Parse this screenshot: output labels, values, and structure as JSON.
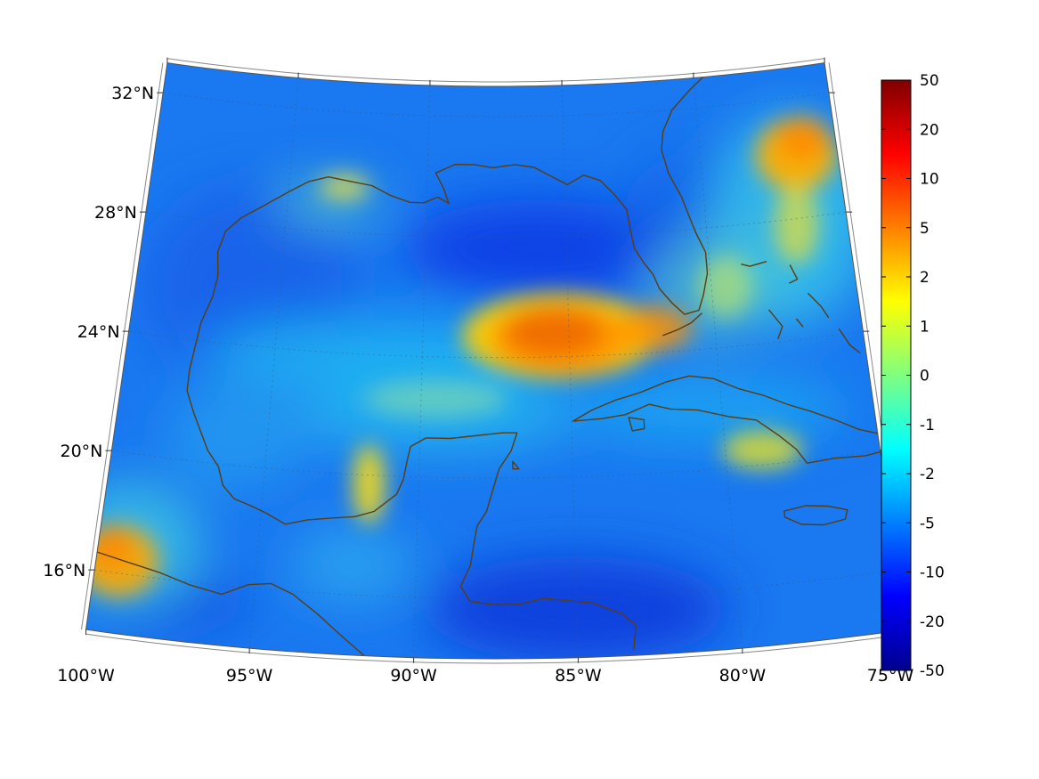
{
  "map": {
    "projection": "conic",
    "longitude_range": [
      -100,
      -75
    ],
    "latitude_range": [
      14,
      33
    ],
    "latitude_labels": [
      {
        "lat": 32,
        "text": "32°N"
      },
      {
        "lat": 28,
        "text": "28°N"
      },
      {
        "lat": 24,
        "text": "24°N"
      },
      {
        "lat": 20,
        "text": "20°N"
      },
      {
        "lat": 16,
        "text": "16°N"
      }
    ],
    "longitude_labels": [
      {
        "lon": -100,
        "text": "100°W"
      },
      {
        "lon": -95,
        "text": "95°W"
      },
      {
        "lon": -90,
        "text": "90°W"
      },
      {
        "lon": -85,
        "text": "85°W"
      },
      {
        "lon": -80,
        "text": "80°W"
      },
      {
        "lon": -75,
        "text": "75°W"
      }
    ],
    "coastline_color": "#5a3c10",
    "field_features": [
      {
        "lon": -85.3,
        "lat": 24.6,
        "value": 5,
        "feature": "warm anomaly north of Cuba"
      },
      {
        "lon": -76.5,
        "lat": 30.0,
        "value": 4,
        "feature": "warm anomaly off Carolinas"
      },
      {
        "lon": -99.3,
        "lat": 16.3,
        "value": 4,
        "feature": "warm anomaly over southern Mexico"
      },
      {
        "lon": -91.5,
        "lat": 19.7,
        "value": 1.5,
        "feature": "warm anomaly over Campeche"
      },
      {
        "lon": -86.5,
        "lat": 27.5,
        "value": -10,
        "feature": "cold anomaly northeastern Gulf"
      },
      {
        "lon": -85.0,
        "lat": 15.5,
        "value": -12,
        "feature": "cold anomaly Gulf of Honduras"
      }
    ]
  },
  "colorbar": {
    "tick_labels": [
      "50",
      "20",
      "10",
      "5",
      "2",
      "1",
      "0",
      "-1",
      "-2",
      "-5",
      "-10",
      "-20",
      "-50"
    ],
    "colors": [
      "#00008f",
      "#0000ff",
      "#007fff",
      "#00ffff",
      "#7fff7f",
      "#ffff00",
      "#ff7f00",
      "#ff0000",
      "#7f0000"
    ]
  }
}
